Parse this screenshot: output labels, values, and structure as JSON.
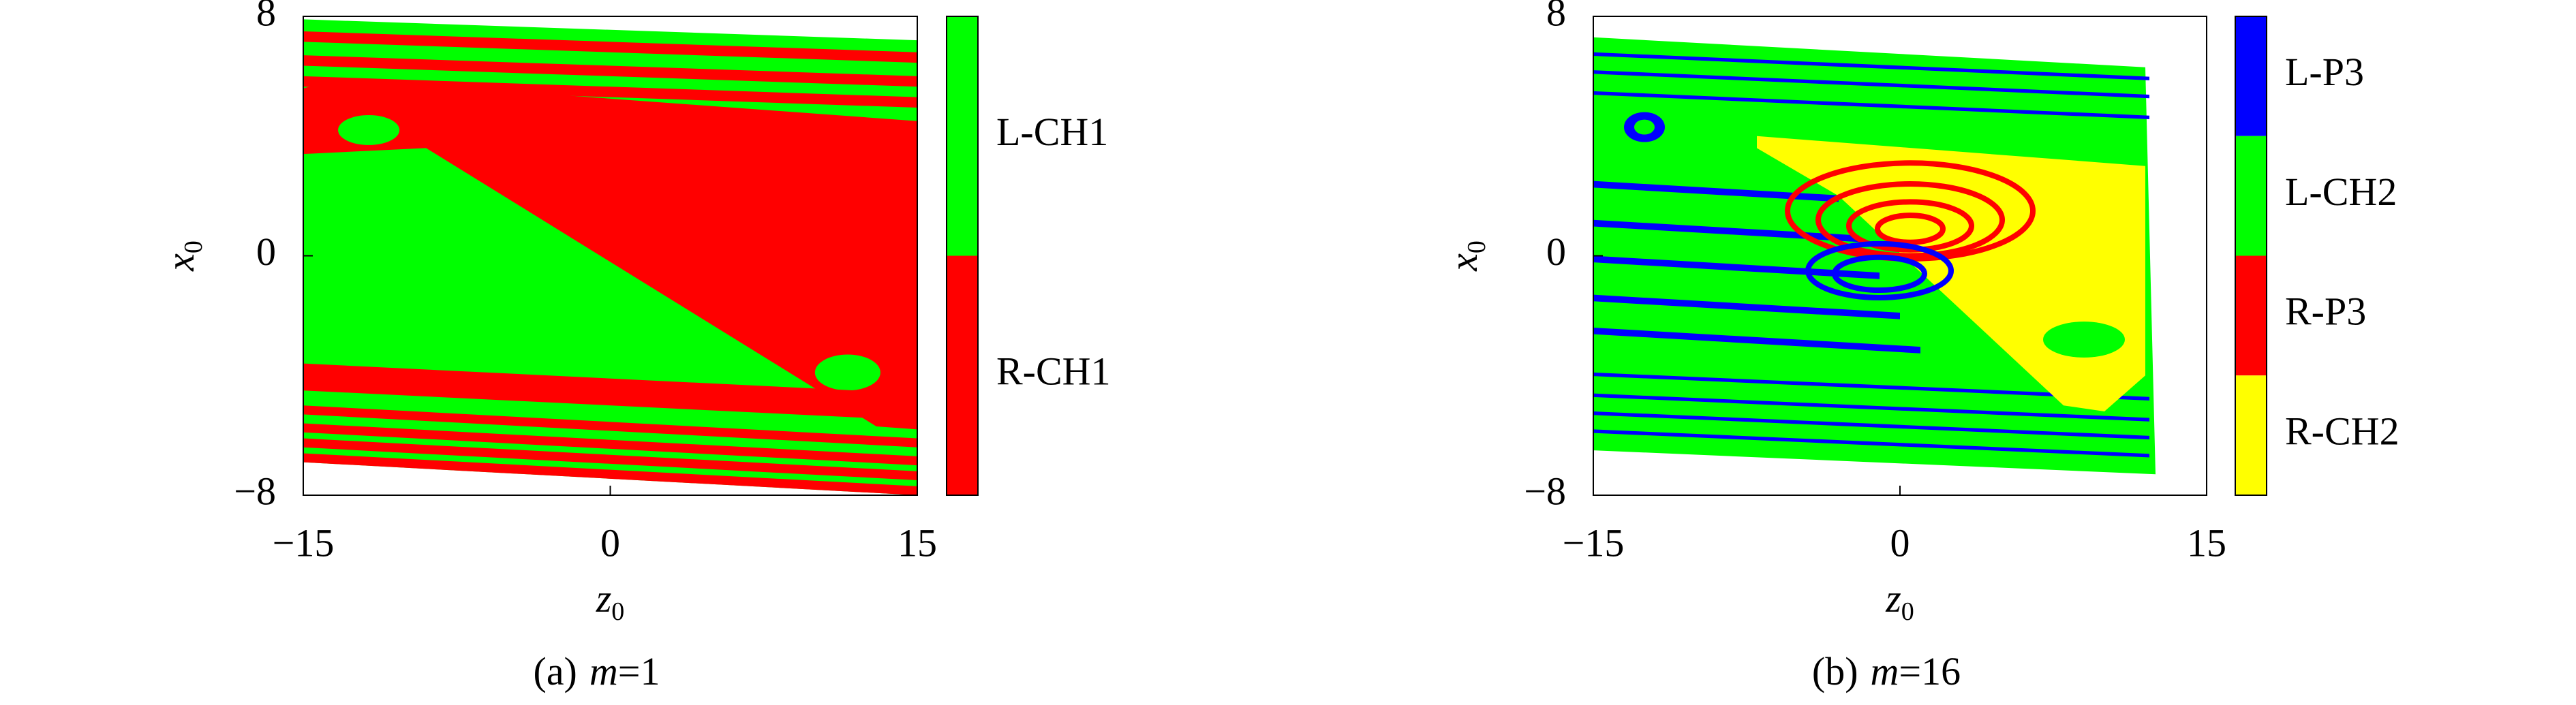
{
  "chart_data": [
    {
      "type": "basin",
      "xlabel": {
        "text": "z",
        "sub": "0"
      },
      "ylabel": {
        "text": "x",
        "sub": "0"
      },
      "xlim": [
        -15,
        15
      ],
      "ylim": [
        -8,
        8
      ],
      "xticks": [
        {
          "value": -15,
          "label": "−15"
        },
        0,
        15
      ],
      "yticks": [
        {
          "value": -8,
          "label": "−8"
        },
        0,
        8
      ],
      "legend": [
        {
          "name": "L-CH1",
          "color": "#00ff00"
        },
        {
          "name": "R-CH1",
          "color": "#ff0000"
        }
      ],
      "caption": {
        "label": "(a)",
        "var": "m",
        "eq": "=1"
      }
    },
    {
      "type": "basin",
      "xlabel": {
        "text": "z",
        "sub": "0"
      },
      "ylabel": {
        "text": "x",
        "sub": "0"
      },
      "xlim": [
        -15,
        15
      ],
      "ylim": [
        -8,
        8
      ],
      "xticks": [
        {
          "value": -15,
          "label": "−15"
        },
        0,
        15
      ],
      "yticks": [
        {
          "value": -8,
          "label": "−8"
        },
        0,
        8
      ],
      "legend": [
        {
          "name": "L-P3",
          "color": "#0000ff"
        },
        {
          "name": "L-CH2",
          "color": "#00ff00"
        },
        {
          "name": "R-P3",
          "color": "#ff0000"
        },
        {
          "name": "R-CH2",
          "color": "#ffff00"
        }
      ],
      "caption": {
        "label": "(b)",
        "var": "m",
        "eq": "=16"
      }
    }
  ]
}
